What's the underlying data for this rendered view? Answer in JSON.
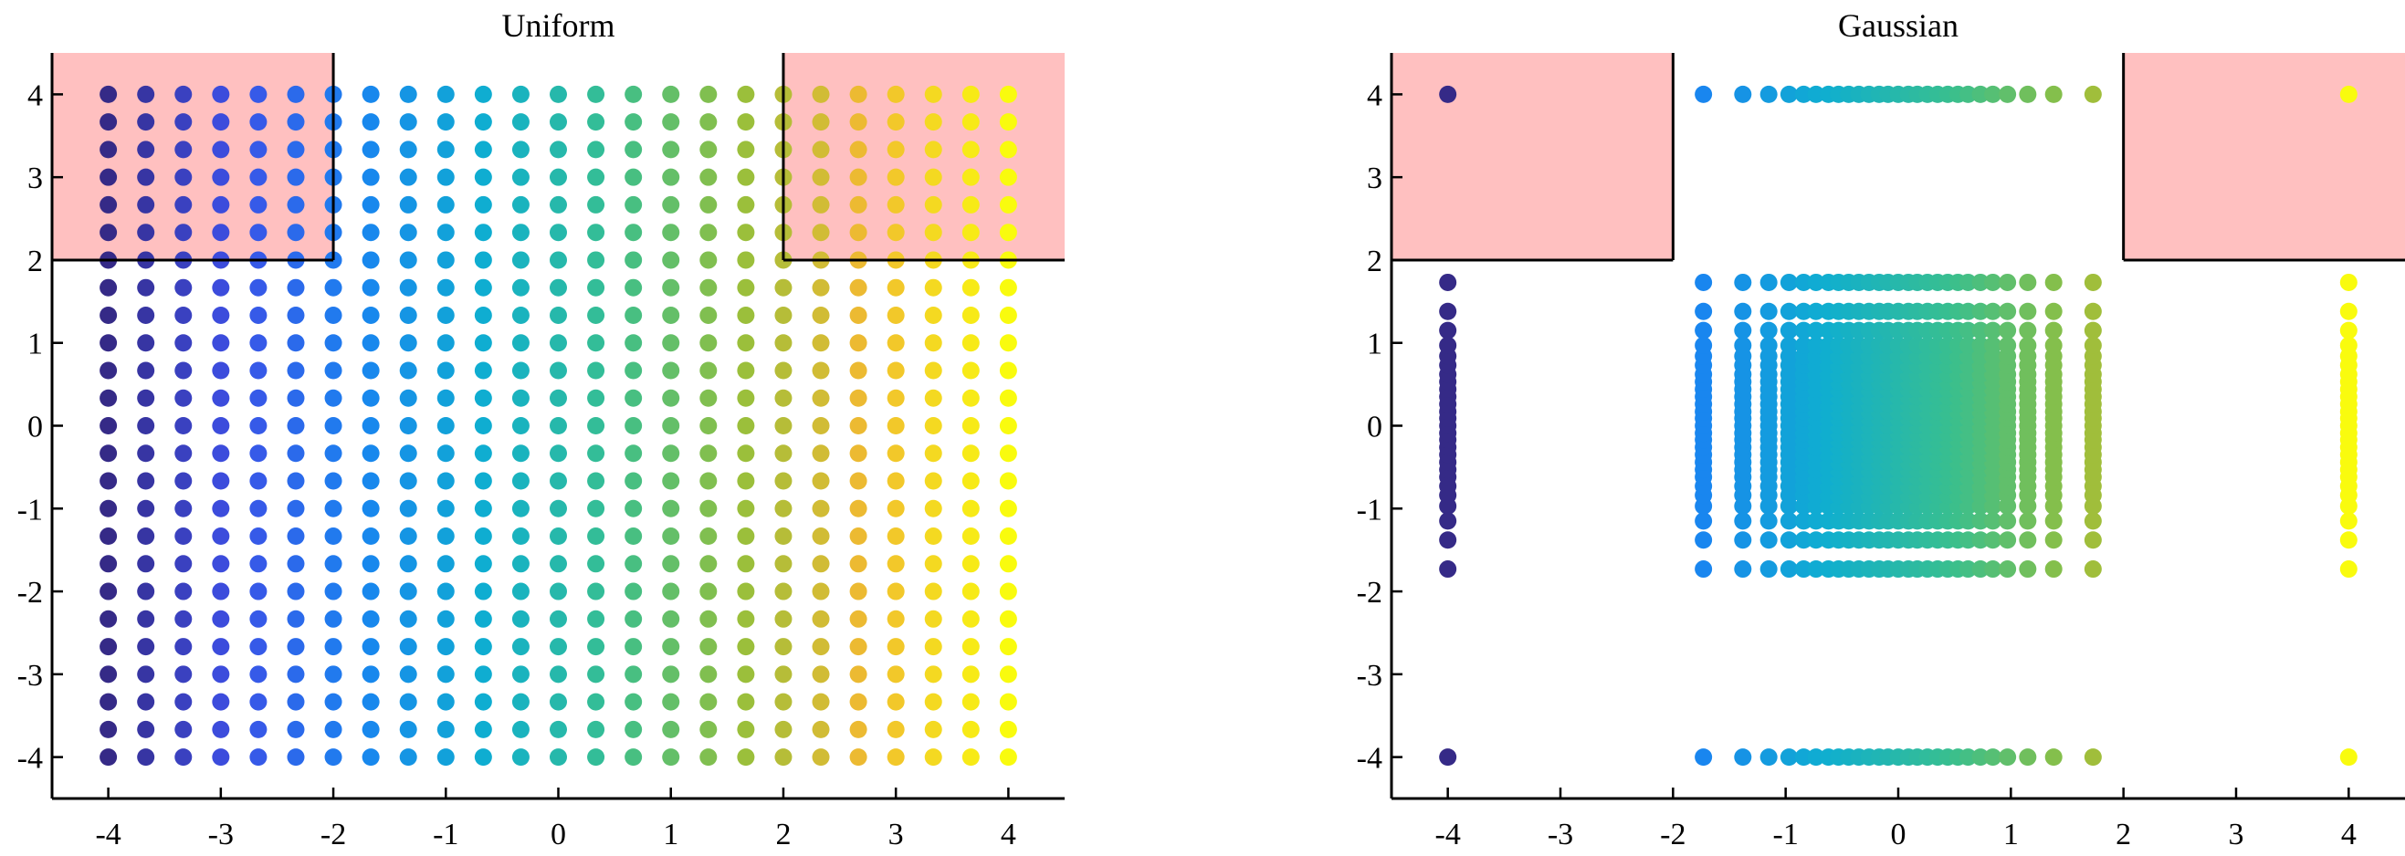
{
  "chart_data": [
    {
      "type": "scatter",
      "title": "Uniform",
      "xlabel": "",
      "ylabel": "",
      "xlim": [
        -4.5,
        4.5
      ],
      "ylim": [
        -4.5,
        4.5
      ],
      "xticks": [
        -4,
        -3,
        -2,
        -1,
        0,
        1,
        2,
        3,
        4
      ],
      "yticks": [
        -4,
        -3,
        -2,
        -1,
        0,
        1,
        2,
        3,
        4
      ],
      "xtick_labels": [
        "-4",
        "-3",
        "-2",
        "-1",
        "0",
        "1",
        "2",
        "3",
        "4"
      ],
      "ytick_labels": [
        "-4",
        "-3",
        "-2",
        "-1",
        "0",
        "1",
        "2",
        "3",
        "4"
      ],
      "grid": false,
      "shaded_regions": [
        {
          "x": [
            -4.5,
            -2
          ],
          "y": [
            2,
            4.5
          ],
          "color": "#ffc0c0"
        },
        {
          "x": [
            2,
            4.5
          ],
          "y": [
            2,
            4.5
          ],
          "color": "#ffc0c0"
        }
      ],
      "points": {
        "distribution": "uniform",
        "x_values": [
          -4,
          -3.6667,
          -3.3333,
          -3,
          -2.6667,
          -2.3333,
          -2,
          -1.6667,
          -1.3333,
          -1,
          -0.6667,
          -0.3333,
          0,
          0.3333,
          0.6667,
          1,
          1.3333,
          1.6667,
          2,
          2.3333,
          2.6667,
          3,
          3.3333,
          3.6667,
          4
        ],
        "y_values": [
          -4,
          -3.6667,
          -3.3333,
          -3,
          -2.6667,
          -2.3333,
          -2,
          -1.6667,
          -1.3333,
          -1,
          -0.6667,
          -0.3333,
          0,
          0.3333,
          0.6667,
          1,
          1.3333,
          1.6667,
          2,
          2.3333,
          2.6667,
          3,
          3.3333,
          3.6667,
          4
        ],
        "color_by": "x",
        "colormap": "parula"
      }
    },
    {
      "type": "scatter",
      "title": "Gaussian",
      "xlabel": "",
      "ylabel": "",
      "xlim": [
        -4.5,
        4.5
      ],
      "ylim": [
        -4.5,
        4.5
      ],
      "xticks": [
        -4,
        -3,
        -2,
        -1,
        0,
        1,
        2,
        3,
        4
      ],
      "yticks": [
        -4,
        -3,
        -2,
        -1,
        0,
        1,
        2,
        3,
        4
      ],
      "xtick_labels": [
        "-4",
        "-3",
        "-2",
        "-1",
        "0",
        "1",
        "2",
        "3",
        "4"
      ],
      "ytick_labels": [
        "-4",
        "-3",
        "-2",
        "-1",
        "0",
        "1",
        "2",
        "3",
        "4"
      ],
      "grid": false,
      "shaded_regions": [
        {
          "x": [
            -4.5,
            -2
          ],
          "y": [
            2,
            4.5
          ],
          "color": "#ffc0c0"
        },
        {
          "x": [
            2,
            4.5
          ],
          "y": [
            2,
            4.5
          ],
          "color": "#ffc0c0"
        }
      ],
      "points": {
        "distribution": "gaussian",
        "x_values": [
          -4,
          -1.73,
          -1.38,
          -1.15,
          -0.97,
          -0.84,
          -0.73,
          -0.62,
          -0.53,
          -0.44,
          -0.35,
          -0.26,
          -0.17,
          -0.09,
          0,
          0.09,
          0.17,
          0.26,
          0.35,
          0.44,
          0.53,
          0.62,
          0.73,
          0.84,
          0.97,
          1.15,
          1.38,
          1.73,
          4
        ],
        "y_values": [
          -4,
          -1.73,
          -1.38,
          -1.15,
          -0.97,
          -0.84,
          -0.73,
          -0.62,
          -0.53,
          -0.44,
          -0.35,
          -0.26,
          -0.17,
          -0.09,
          0,
          0.09,
          0.17,
          0.26,
          0.35,
          0.44,
          0.53,
          0.62,
          0.73,
          0.84,
          0.97,
          1.15,
          1.38,
          1.73,
          4
        ],
        "color_by": "x",
        "colormap": "parula"
      }
    }
  ]
}
